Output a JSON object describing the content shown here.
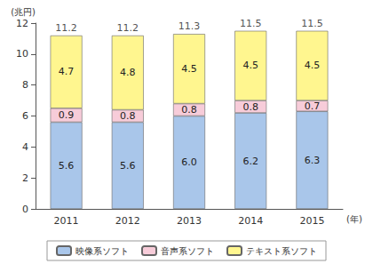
{
  "chart_data": {
    "type": "bar",
    "stacked": true,
    "data_labels": true,
    "grid": false,
    "legend": "bottom",
    "y_label": "(兆円)",
    "x_label": "(年)",
    "categories": [
      "2011",
      "2012",
      "2013",
      "2014",
      "2015"
    ],
    "ylim": [
      0,
      12
    ],
    "yticks": [
      0,
      2,
      4,
      6,
      8,
      10,
      12
    ],
    "series": [
      {
        "name": "映像系ソフト",
        "color": "#a9c6ea",
        "values": [
          5.6,
          5.6,
          6.0,
          6.2,
          6.3
        ],
        "value_labels": [
          "5.6",
          "5.6",
          "6.0",
          "6.2",
          "6.3"
        ]
      },
      {
        "name": "音声系ソフト",
        "color": "#f7ccd9",
        "values": [
          0.9,
          0.8,
          0.8,
          0.8,
          0.7
        ]
      },
      {
        "name": "テキスト系ソフト",
        "color": "#fff68f",
        "values": [
          4.7,
          4.8,
          4.5,
          4.5,
          4.5
        ]
      }
    ],
    "totals": [
      11.2,
      11.2,
      11.3,
      11.5,
      11.5
    ]
  }
}
